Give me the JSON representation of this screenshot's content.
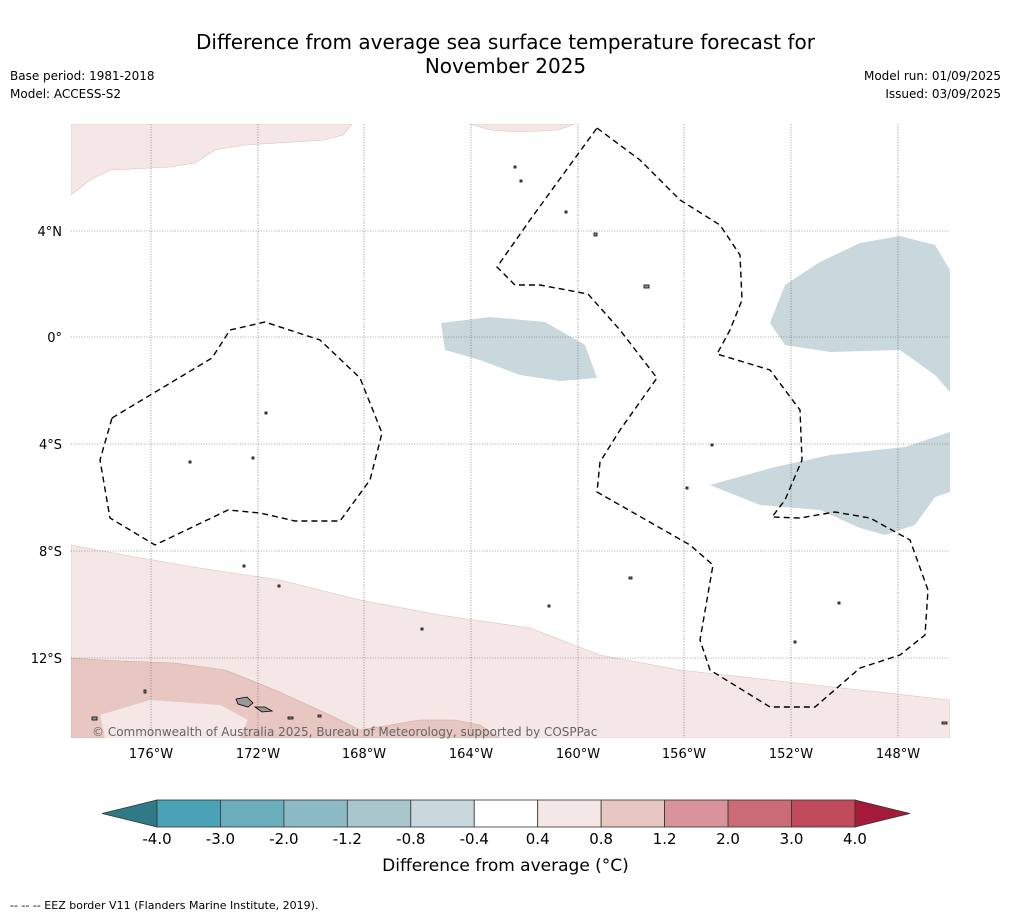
{
  "title_line1": "Difference from average sea surface temperature forecast for",
  "title_line2": "November 2025",
  "base_period": "Base period: 1981-2018",
  "model": "Model: ACCESS-S2",
  "model_run": "Model run: 01/09/2025",
  "issued": "Issued: 03/09/2025",
  "copyright": "© Commonwealth of Australia 2025, Bureau of Meteorology, supported by COSPPac",
  "lon_labels": [
    "176°W",
    "172°W",
    "168°W",
    "164°W",
    "160°W",
    "156°W",
    "152°W",
    "148°W"
  ],
  "lat_labels": [
    "4°N",
    "0°",
    "4°S",
    "8°S",
    "12°S"
  ],
  "colorbar": {
    "ticks": [
      "-4.0",
      "-3.0",
      "-2.0",
      "-1.2",
      "-0.8",
      "-0.4",
      "0.4",
      "0.8",
      "1.2",
      "2.0",
      "3.0",
      "4.0"
    ],
    "colors": [
      "#4aa3b4",
      "#6aaebc",
      "#8cbac5",
      "#a9c6cc",
      "#c8d8dc",
      "#ffffff",
      "#f5e7e5",
      "#e8c7c2",
      "#d9939a",
      "#cc6b76",
      "#c04a59"
    ],
    "under_color": "#2f7a86",
    "over_color": "#a51a3a",
    "label": "Difference from average (°C)"
  },
  "footnote": "--  --  -- EEZ border V11 (Flanders Marine Institute, 2019)."
}
